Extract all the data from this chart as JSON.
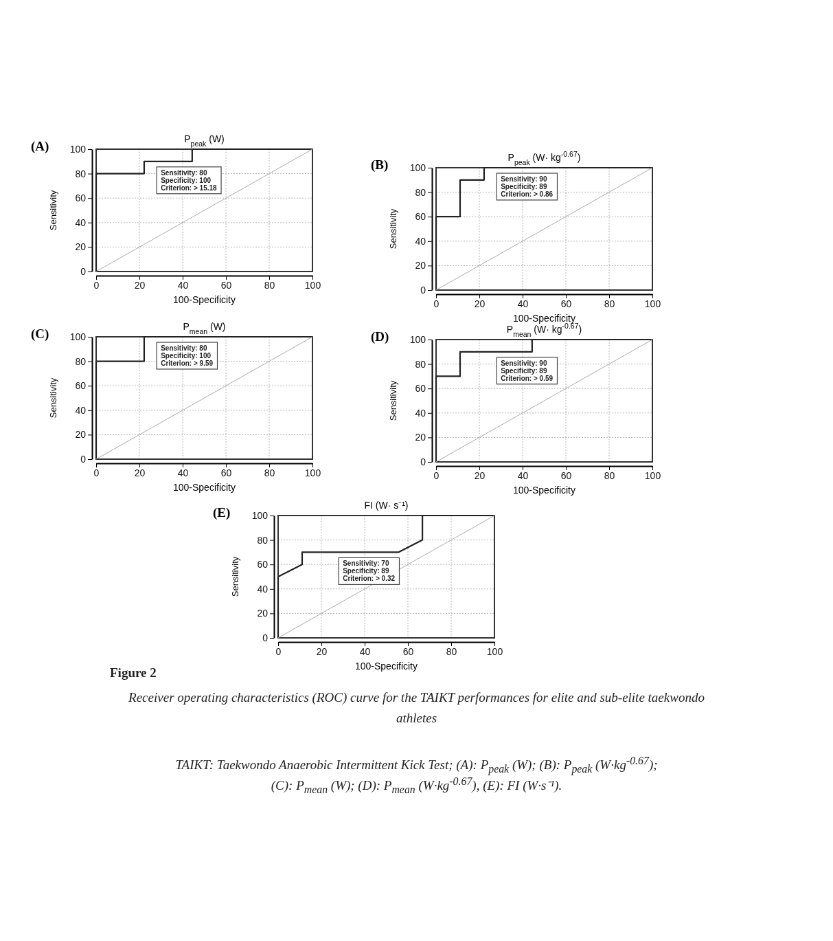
{
  "chart_data": [
    {
      "type": "line",
      "title": "P$_{peak}$ (W)",
      "xlabel": "100-Specificity",
      "ylabel": "Sensitivity",
      "xlim": [
        0,
        100
      ],
      "ylim": [
        0,
        100
      ],
      "xticks": [
        0,
        20,
        40,
        60,
        80,
        100
      ],
      "yticks": [
        0,
        20,
        40,
        60,
        80,
        100
      ],
      "grid": true,
      "annotations": [
        "(A)",
        "Sensitivity: 80\nSpecificity: 100\nCriterion: > 15.18"
      ],
      "series": [
        {
          "color": "#222222",
          "x": [
            0,
            0,
            22.2,
            22.2,
            44.4,
            44.4,
            100
          ],
          "values": [
            0,
            80,
            80,
            90,
            90,
            100,
            100
          ]
        },
        {
          "color": "#aaaaaa",
          "x": [
            0,
            100
          ],
          "values": [
            0,
            100
          ]
        }
      ]
    },
    {
      "type": "line",
      "title": "P$_{peak}$ (W· kg$^{-0.67}$)",
      "xlabel": "100-Specificity",
      "ylabel": "Sensitivity",
      "xlim": [
        0,
        100
      ],
      "ylim": [
        0,
        100
      ],
      "xticks": [
        0,
        20,
        40,
        60,
        80,
        100
      ],
      "yticks": [
        0,
        20,
        40,
        60,
        80,
        100
      ],
      "grid": true,
      "annotations": [
        "(B)",
        "Sensitivity: 90\nSpecificity: 89\nCriterion: > 0.86"
      ],
      "series": [
        {
          "color": "#222222",
          "x": [
            0,
            0,
            11.1,
            11.1,
            22.2,
            22.2,
            100
          ],
          "values": [
            0,
            60,
            60,
            90,
            90,
            100,
            100
          ]
        },
        {
          "color": "#aaaaaa",
          "x": [
            0,
            100
          ],
          "values": [
            0,
            100
          ]
        }
      ]
    },
    {
      "type": "line",
      "title": "P$_{mean}$ (W)",
      "xlabel": "100-Specificity",
      "ylabel": "Sensitivity",
      "xlim": [
        0,
        100
      ],
      "ylim": [
        0,
        100
      ],
      "xticks": [
        0,
        20,
        40,
        60,
        80,
        100
      ],
      "yticks": [
        0,
        20,
        40,
        60,
        80,
        100
      ],
      "grid": true,
      "annotations": [
        "(C)",
        "Sensitivity: 80\nSpecificity: 100\nCriterion: > 9.59"
      ],
      "series": [
        {
          "color": "#222222",
          "x": [
            0,
            0,
            22.2,
            22.2,
            100
          ],
          "values": [
            0,
            80,
            80,
            100,
            100
          ]
        },
        {
          "color": "#aaaaaa",
          "x": [
            0,
            100
          ],
          "values": [
            0,
            100
          ]
        }
      ]
    },
    {
      "type": "line",
      "title": "P$_{mean}$ (W· kg$^{-0.67}$)",
      "xlabel": "100-Specificity",
      "ylabel": "Sensitivity",
      "xlim": [
        0,
        100
      ],
      "ylim": [
        0,
        100
      ],
      "xticks": [
        0,
        20,
        40,
        60,
        80,
        100
      ],
      "yticks": [
        0,
        20,
        40,
        60,
        80,
        100
      ],
      "grid": true,
      "annotations": [
        "(D)",
        "Sensitivity: 90\nSpecificity: 89\nCriterion: > 0.59"
      ],
      "series": [
        {
          "color": "#222222",
          "x": [
            0,
            0,
            11.1,
            11.1,
            44.4,
            44.4,
            100
          ],
          "values": [
            0,
            70,
            70,
            90,
            90,
            100,
            100
          ]
        },
        {
          "color": "#aaaaaa",
          "x": [
            0,
            100
          ],
          "values": [
            0,
            100
          ]
        }
      ]
    },
    {
      "type": "line",
      "title": "FI (W· s⁻¹)",
      "xlabel": "100-Specificity",
      "ylabel": "Sensitivity",
      "xlim": [
        0,
        100
      ],
      "ylim": [
        0,
        100
      ],
      "xticks": [
        0,
        20,
        40,
        60,
        80,
        100
      ],
      "yticks": [
        0,
        20,
        40,
        60,
        80,
        100
      ],
      "grid": true,
      "annotations": [
        "(E)",
        "Sensitivity: 70\nSpecificity: 89\nCriterion: > 0.32",
        "Figure 2",
        "Receiver operating characteristics (ROC) curve for the TAIKT performances for elite and sub-elite taekwondo athletes",
        "TAIKT: Taekwondo Anaerobic Intermittent Kick Test; (A): P$_{peak}$ (W); (B): P$_{peak}$ (W·kg$^{-0.67}$);",
        "(C): P$_{mean}$ (W); (D): P$_{mean}$ (W·kg$^{-0.67}$), (E): FI (W·s⁻¹)."
      ],
      "series": [
        {
          "color": "#222222",
          "x": [
            0,
            0,
            11.1,
            11.1,
            55.6,
            66.7,
            66.7,
            100
          ],
          "values": [
            0,
            50,
            60,
            70,
            70,
            80,
            100,
            100
          ]
        },
        {
          "color": "#aaaaaa",
          "x": [
            0,
            100
          ],
          "values": [
            0,
            100
          ]
        }
      ]
    }
  ]
}
